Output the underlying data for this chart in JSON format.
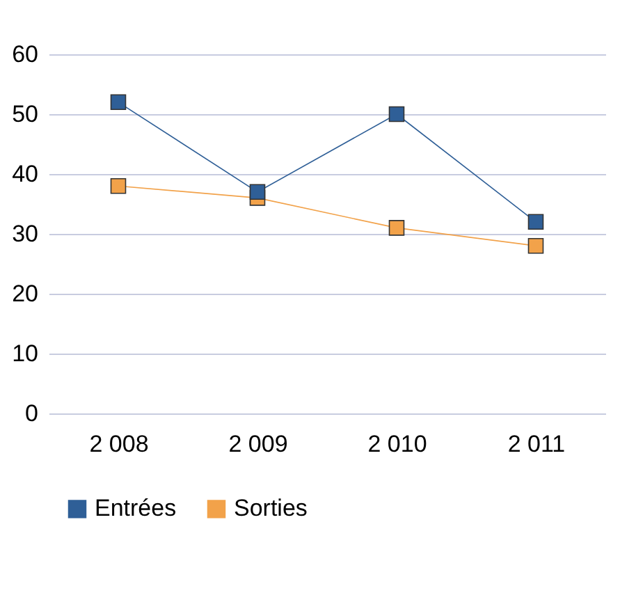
{
  "chart_data": {
    "type": "line",
    "categories": [
      "2 008",
      "2 009",
      "2 010",
      "2 011"
    ],
    "series": [
      {
        "name": "Entrées",
        "color": "#2f5f97",
        "values": [
          52,
          37,
          50,
          32
        ]
      },
      {
        "name": "Sorties",
        "color": "#f2a24a",
        "values": [
          38,
          36,
          31,
          28
        ]
      }
    ],
    "ylim": [
      0,
      60
    ],
    "yticks": [
      0,
      10,
      20,
      30,
      40,
      50,
      60
    ],
    "grid": "y",
    "legend": "bottom",
    "marker": "square",
    "line_style": "solid"
  }
}
